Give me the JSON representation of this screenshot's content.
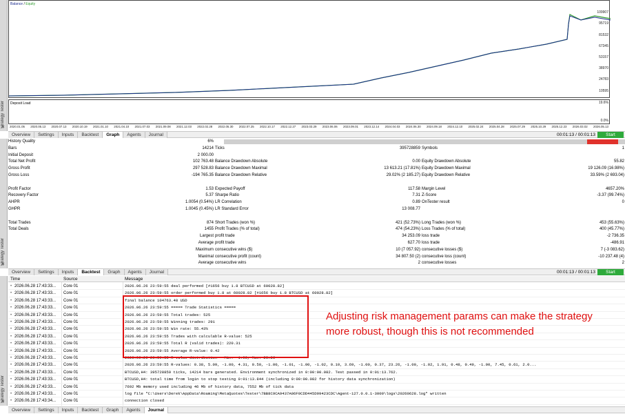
{
  "graph": {
    "legend_balance": "Balance",
    "legend_sep": " / ",
    "legend_equity": "Equity",
    "y_labels": [
      "109907",
      "95719",
      "81532",
      "67345",
      "53157",
      "38970",
      "24783",
      "10595"
    ],
    "deposit_label": "Deposit Load",
    "deposit_y_labels": [
      "19.6%",
      "0.0%"
    ],
    "x_labels": [
      "2020.01.05",
      "2020.05.13",
      "2020.07.13",
      "2020.10.19",
      "2021.01.10",
      "2021.04.10",
      "2021.07.03",
      "2021.09.08",
      "2021.12.03",
      "2022.02.28",
      "2022.05.30",
      "2022.07.25",
      "2022.10.17",
      "2022.12.27",
      "2023.03.29",
      "2023.06.06",
      "2023.09.01",
      "2023.12.14",
      "2024.04.03",
      "2024.06.30",
      "2024.09.18",
      "2024.12.10",
      "2025.02.24",
      "2025.04.28",
      "2025.07.29",
      "2025.10.29",
      "2025.12.23",
      "2026.03.02",
      "2026.05.13"
    ]
  },
  "tabs": [
    "Overview",
    "Settings",
    "Inputs",
    "Backtest",
    "Graph",
    "Agents",
    "Journal"
  ],
  "timer": "00:01:13 / 00:01:13",
  "start_label": "Start",
  "side_label": "Strategy Tester",
  "stats": {
    "rows": [
      [
        "History Quality",
        "6%",
        "",
        "",
        "",
        ""
      ],
      [
        "Bars",
        "14214",
        "Ticks",
        "395728859",
        "Symbols",
        "1"
      ],
      [
        "Initial Deposit",
        "2 000.00",
        "",
        "",
        "",
        ""
      ],
      [
        "Total Net Profit",
        "102 763.48",
        "Balance Drawdown Absolute",
        "0.00",
        "Equity Drawdown Absolute",
        "55.82"
      ],
      [
        "Gross Profit",
        "297 528.83",
        "Balance Drawdown Maximal",
        "13 613.21 (17.81%)",
        "Equity Drawdown Maximal",
        "19 126.09 (16.98%)"
      ],
      [
        "Gross Loss",
        "-194 765.35",
        "Balance Drawdown Relative",
        "29.02% (2 185.27)",
        "Equity Drawdown Relative",
        "33.59% (2 693.04)"
      ],
      [
        "",
        "",
        "",
        "",
        "",
        ""
      ],
      [
        "Profit Factor",
        "1.53",
        "Expected Payoff",
        "117.58",
        "Margin Level",
        "4657.20%"
      ],
      [
        "Recovery Factor",
        "5.37",
        "Sharpe Ratio",
        "7.31",
        "Z-Score",
        "-3.37 (99.74%)"
      ],
      [
        "AHPR",
        "1.0054 (0.54%)",
        "LR Correlation",
        "0.89",
        "OnTester result",
        "0"
      ],
      [
        "GHPR",
        "1.0045 (0.45%)",
        "LR Standard Error",
        "13 008.77",
        "",
        ""
      ],
      [
        "",
        "",
        "",
        "",
        "",
        ""
      ],
      [
        "Total Trades",
        "874",
        "Short Trades (won %)",
        "421 (52.73%)",
        "Long Trades (won %)",
        "453 (55.63%)"
      ],
      [
        "Total Deals",
        "1455",
        "Profit Trades (% of total)",
        "474 (54.23%)",
        "Loss Trades (% of total)",
        "400 (45.77%)"
      ],
      [
        "",
        "Largest",
        "profit trade",
        "34 253.09",
        "loss trade",
        "-2 736.35"
      ],
      [
        "",
        "Average",
        "profit trade",
        "627.70",
        "loss trade",
        "-486.91"
      ],
      [
        "",
        "Maximum",
        "consecutive wins ($)",
        "10 (7 057.92)",
        "consecutive losses ($)",
        "7 (-3 083.62)"
      ],
      [
        "",
        "Maximal",
        "consecutive profit (count)",
        "34 807.50 (2)",
        "consecutive loss (count)",
        "-10 237.48 (4)"
      ],
      [
        "",
        "Average",
        "consecutive wins",
        "2",
        "consecutive losses",
        "2"
      ]
    ]
  },
  "journal": {
    "headers": [
      "Time",
      "Source",
      "Message"
    ],
    "rows": [
      [
        "2026.06.28 17:43:33...",
        "Core 01",
        "2026.06.26 23:59:55   deal performed [#1656 buy 1.8 BTCUSD at 60028.82]"
      ],
      [
        "2026.06.28 17:43:33...",
        "Core 01",
        "2026.06.26 23:59:55   order performed buy 1.8 at 60028.82 [#1656 buy 1.8 BTCUSD at 60028.82]"
      ],
      [
        "2026.06.28 17:43:33...",
        "Core 01",
        "final balance 104763.48 USD"
      ],
      [
        "2026.06.28 17:43:33...",
        "Core 01",
        "2026.06.26 23:59:55   ===== Trade Statistics ====="
      ],
      [
        "2026.06.28 17:43:33...",
        "Core 01",
        "2026.06.26 23:59:55   Total trades: 525"
      ],
      [
        "2026.06.28 17:43:33...",
        "Core 01",
        "2026.06.26 23:59:55   Winning trades: 291"
      ],
      [
        "2026.06.28 17:43:33...",
        "Core 01",
        "2026.06.26 23:59:55   Win rate: 55.43%"
      ],
      [
        "2026.06.28 17:43:33...",
        "Core 01",
        "2026.06.26 23:59:55   Trades with calculable R-value: 525"
      ],
      [
        "2026.06.28 17:43:33...",
        "Core 01",
        "2026.06.26 23:59:55   Total R (valid trades): 220.31"
      ],
      [
        "2026.06.28 17:43:33...",
        "Core 01",
        "2026.06.26 23:59:55   Average R-value: 0.42"
      ],
      [
        "2026.06.28 17:43:33...",
        "Core 01",
        "2026.06.26 23:59:55   R-value distribution - Min: -1.06, Max: 23.26"
      ],
      [
        "2026.06.28 17:43:33...",
        "Core 01",
        "2026.06.26 23:59:55   R-values: 0.38, 5.09, -1.00, 4.31, 0.50, -1.00, -1.01, -1.00, -1.02, 0.10, 3.69, -1.00, 0.37, 23.26, -1.00, -1.02, 1.91, 0.48, 0.49, -1.00, 7.45, 0.61, 2.0..."
      ],
      [
        "2026.06.28 17:43:33...",
        "Core 01",
        "BTCUSD,H4: 395728859 ticks, 14214 bars generated. Environment synchronized in 0:00:00.082. Test passed in 0:01:13.762."
      ],
      [
        "2026.06.28 17:43:33...",
        "Core 01",
        "BTCUSD,H4: total time from login to stop testing 0:01:13.844 (including 0:00:00.082 for history data synchronization)"
      ],
      [
        "2026.06.28 17:43:33...",
        "Core 01",
        "7692 Mb memory used including 46 Mb of history data, 7552 Mb of tick data"
      ],
      [
        "2026.06.28 17:43:33...",
        "Core 01",
        "log file \"C:\\Users\\Derek\\AppData\\Roaming\\MetaQuotes\\Tester\\7BB8C9CA9437A06F0CDD445D99423CDC\\Agent-127.0.0.1-3000\\logs\\20260628.log\" written"
      ],
      [
        "2026.06.28 17:43:34...",
        "Core 01",
        "connection closed"
      ]
    ]
  },
  "annotation": "Adjusting risk management params can make the strategy more robust, though this is not recommended",
  "colors": {
    "balance": "#1a2a8c",
    "equity": "#2e9a2e",
    "accent": "#e01010",
    "start": "#2eaa3b"
  }
}
